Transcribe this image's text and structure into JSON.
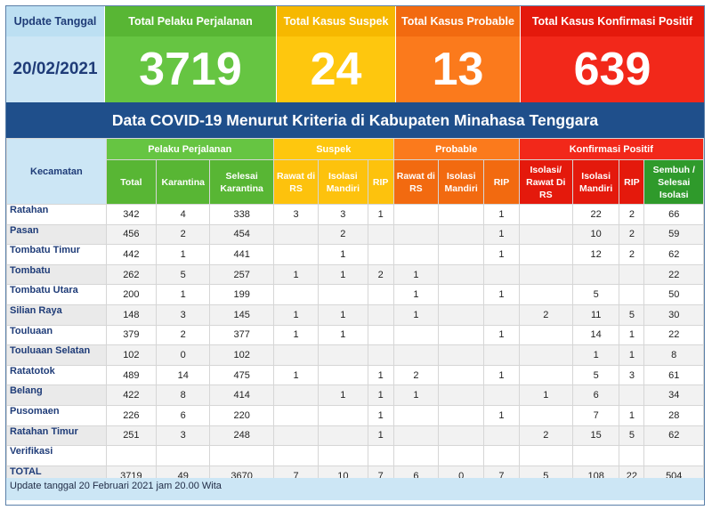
{
  "summary": {
    "update_label": "Update Tanggal",
    "update_date": "20/02/2021",
    "travelers_label": "Total Pelaku Perjalanan",
    "travelers_value": "3719",
    "suspect_label": "Total Kasus Suspek",
    "suspect_value": "24",
    "probable_label": "Total Kasus Probable",
    "probable_value": "13",
    "confirmed_label": "Total Kasus Konfirmasi Positif",
    "confirmed_value": "639"
  },
  "banner_title": "Data COVID-19 Menurut Kriteria di Kabupaten Minahasa Tenggara",
  "table": {
    "kecamatan_header": "Kecamatan",
    "groups": {
      "travelers": "Pelaku Perjalanan",
      "suspect": "Suspek",
      "probable": "Probable",
      "confirmed": "Konfirmasi Positif"
    },
    "columns": [
      "Total",
      "Karantina",
      "Selesai Karantina",
      "Rawat di RS",
      "Isolasi Mandiri",
      "RIP",
      "Rawat di RS",
      "Isolasi Mandiri",
      "RIP",
      "Isolasi/ Rawat Di RS",
      "Isolasi Mandiri",
      "RIP",
      "Sembuh / Selesai Isolasi"
    ],
    "rows": [
      {
        "name": "Ratahan",
        "v": [
          "342",
          "4",
          "338",
          "3",
          "3",
          "1",
          "",
          "",
          "1",
          "",
          "22",
          "2",
          "66"
        ]
      },
      {
        "name": "Pasan",
        "v": [
          "456",
          "2",
          "454",
          "",
          "2",
          "",
          "",
          "",
          "1",
          "",
          "10",
          "2",
          "59"
        ]
      },
      {
        "name": "Tombatu Timur",
        "v": [
          "442",
          "1",
          "441",
          "",
          "1",
          "",
          "",
          "",
          "1",
          "",
          "12",
          "2",
          "62"
        ]
      },
      {
        "name": "Tombatu",
        "v": [
          "262",
          "5",
          "257",
          "1",
          "1",
          "2",
          "1",
          "",
          "",
          "",
          "",
          "",
          "22"
        ]
      },
      {
        "name": "Tombatu Utara",
        "v": [
          "200",
          "1",
          "199",
          "",
          "",
          "",
          "1",
          "",
          "1",
          "",
          "5",
          "",
          "50"
        ]
      },
      {
        "name": "Silian Raya",
        "v": [
          "148",
          "3",
          "145",
          "1",
          "1",
          "",
          "1",
          "",
          "",
          "2",
          "11",
          "5",
          "30"
        ]
      },
      {
        "name": "Touluaan",
        "v": [
          "379",
          "2",
          "377",
          "1",
          "1",
          "",
          "",
          "",
          "1",
          "",
          "14",
          "1",
          "22"
        ]
      },
      {
        "name": "Touluaan Selatan",
        "v": [
          "102",
          "0",
          "102",
          "",
          "",
          "",
          "",
          "",
          "",
          "",
          "1",
          "1",
          "8"
        ]
      },
      {
        "name": "Ratatotok",
        "v": [
          "489",
          "14",
          "475",
          "1",
          "",
          "1",
          "2",
          "",
          "1",
          "",
          "5",
          "3",
          "61"
        ]
      },
      {
        "name": "Belang",
        "v": [
          "422",
          "8",
          "414",
          "",
          "1",
          "1",
          "1",
          "",
          "",
          "1",
          "6",
          "",
          "34"
        ]
      },
      {
        "name": "Pusomaen",
        "v": [
          "226",
          "6",
          "220",
          "",
          "",
          "1",
          "",
          "",
          "1",
          "",
          "7",
          "1",
          "28"
        ]
      },
      {
        "name": "Ratahan Timur",
        "v": [
          "251",
          "3",
          "248",
          "",
          "",
          "1",
          "",
          "",
          "",
          "2",
          "15",
          "5",
          "62"
        ]
      },
      {
        "name": "Verifikasi",
        "v": [
          "",
          "",
          "",
          "",
          "",
          "",
          "",
          "",
          "",
          "",
          "",
          "",
          ""
        ]
      },
      {
        "name": "TOTAL",
        "v": [
          "3719",
          "49",
          "3670",
          "7",
          "10",
          "7",
          "6",
          "0",
          "7",
          "5",
          "108",
          "22",
          "504"
        ]
      }
    ]
  },
  "footer_note": "Update tanggal 20 Februari 2021 jam 20.00 Wita",
  "colors": {
    "green": "#66c542",
    "yellow": "#fec70e",
    "orange": "#fb7a1c",
    "red": "#f2281a",
    "navy": "#1f4f8b",
    "light_blue": "#cce6f5"
  }
}
